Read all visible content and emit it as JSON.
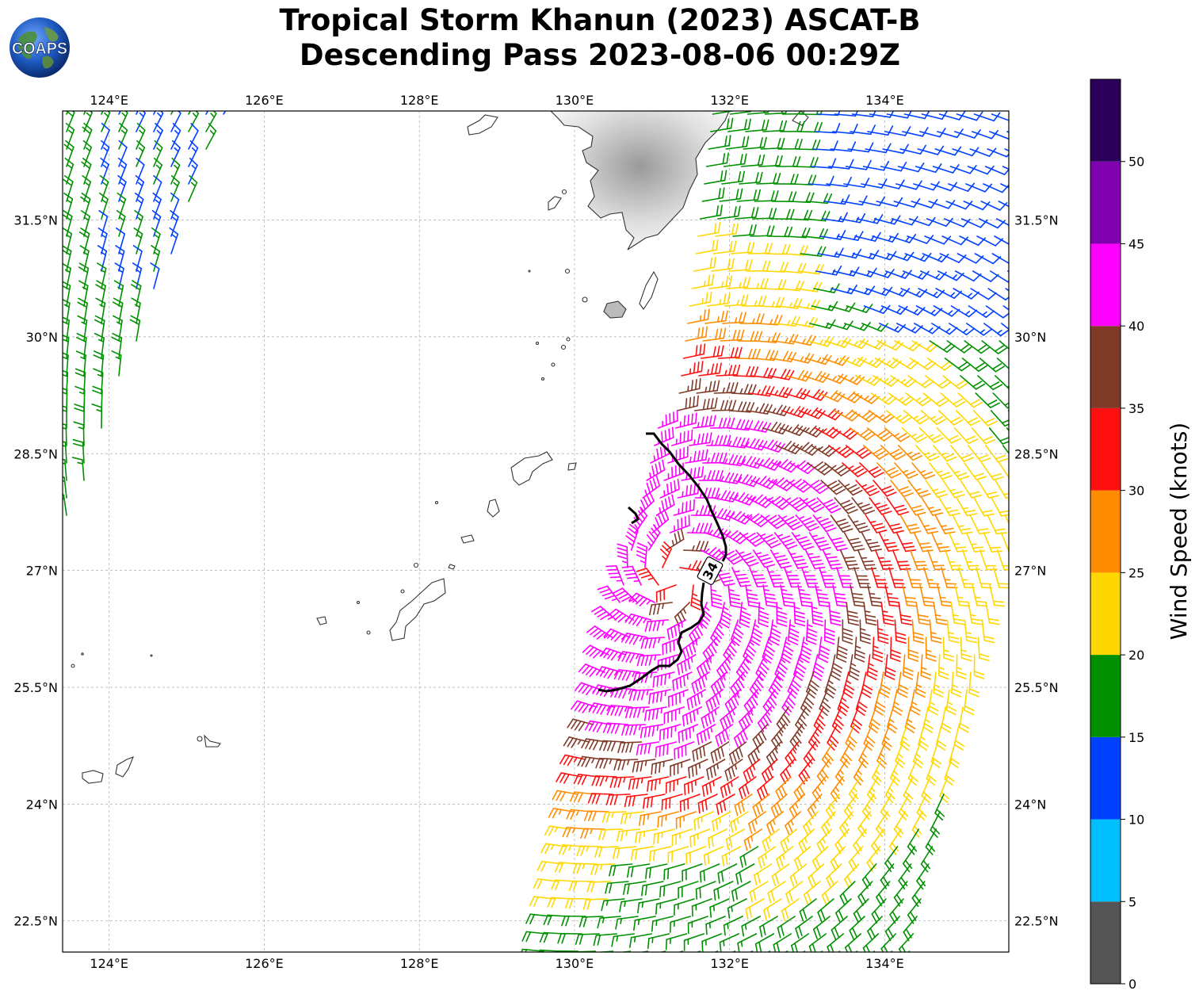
{
  "title": {
    "line1": "Tropical Storm Khanun (2023) ASCAT-B",
    "line2": "Descending Pass 2023-08-06 00:29Z"
  },
  "logo": {
    "text": "COAPS"
  },
  "map": {
    "lon_range": [
      123.4,
      135.6
    ],
    "lat_range": [
      22.1,
      32.9
    ],
    "lon_ticks": [
      "124°E",
      "126°E",
      "128°E",
      "130°E",
      "132°E",
      "134°E"
    ],
    "lat_ticks": [
      "22.5°N",
      "24°N",
      "25.5°N",
      "27°N",
      "28.5°N",
      "30°N",
      "31.5°N"
    ],
    "contour_label": "34",
    "gridlines": true
  },
  "colorbar": {
    "label": "Wind Speed (knots)",
    "ticks": [
      "0",
      "5",
      "10",
      "15",
      "20",
      "25",
      "30",
      "35",
      "40",
      "45",
      "50"
    ],
    "bins": [
      {
        "min": 0,
        "max": 5,
        "color": "#555555"
      },
      {
        "min": 5,
        "max": 10,
        "color": "#00bfff"
      },
      {
        "min": 10,
        "max": 15,
        "color": "#0040ff"
      },
      {
        "min": 15,
        "max": 20,
        "color": "#009000"
      },
      {
        "min": 20,
        "max": 25,
        "color": "#ffd700"
      },
      {
        "min": 25,
        "max": 30,
        "color": "#ff8c00"
      },
      {
        "min": 30,
        "max": 35,
        "color": "#ff1010"
      },
      {
        "min": 35,
        "max": 40,
        "color": "#803a28"
      },
      {
        "min": 40,
        "max": 45,
        "color": "#ff00ff"
      },
      {
        "min": 45,
        "max": 50,
        "color": "#8000b0"
      },
      {
        "min": 50,
        "max": 55,
        "color": "#2b005a"
      }
    ]
  },
  "storm_center": {
    "lon": 131.3,
    "lat": 26.9
  }
}
